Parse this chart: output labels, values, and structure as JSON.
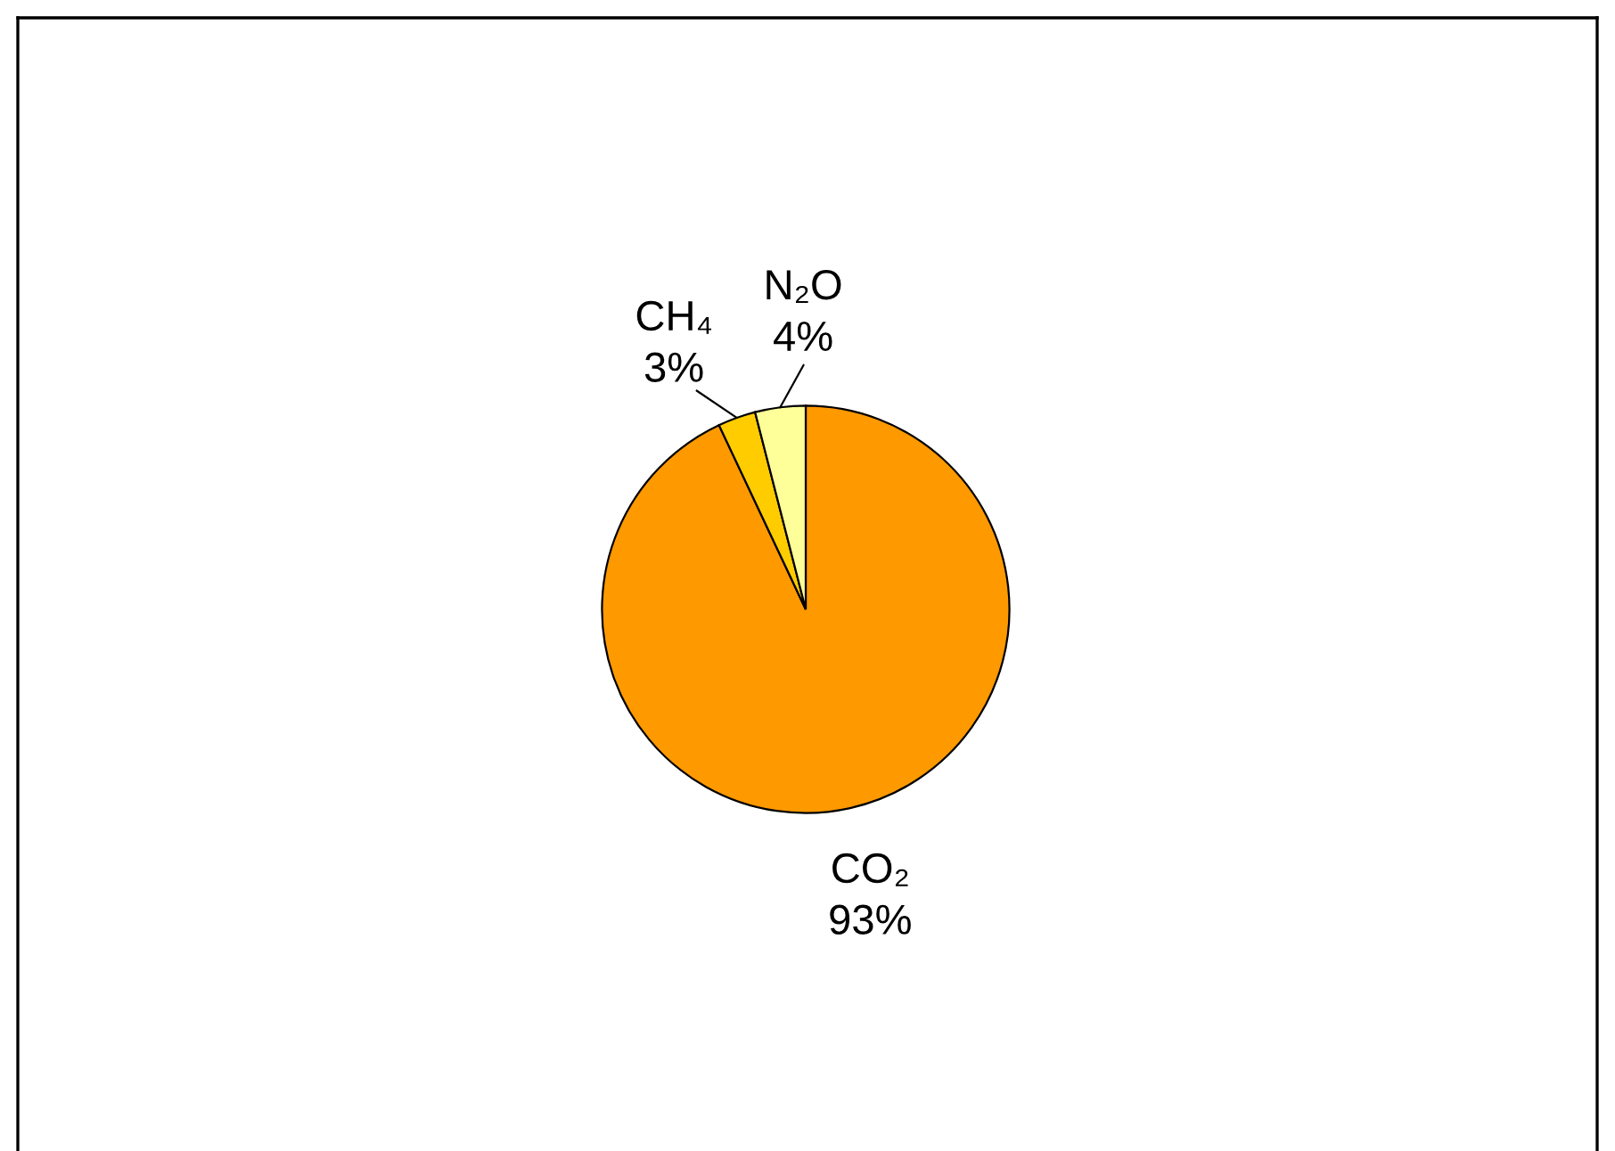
{
  "chart_data": {
    "type": "pie",
    "categories": [
      "CO₂",
      "CH₄",
      "N₂O"
    ],
    "values": [
      93,
      3,
      4
    ],
    "value_labels": [
      "93%",
      "3%",
      "4%"
    ],
    "colors": [
      "#ff9900",
      "#ffcc00",
      "#ffff99"
    ]
  }
}
